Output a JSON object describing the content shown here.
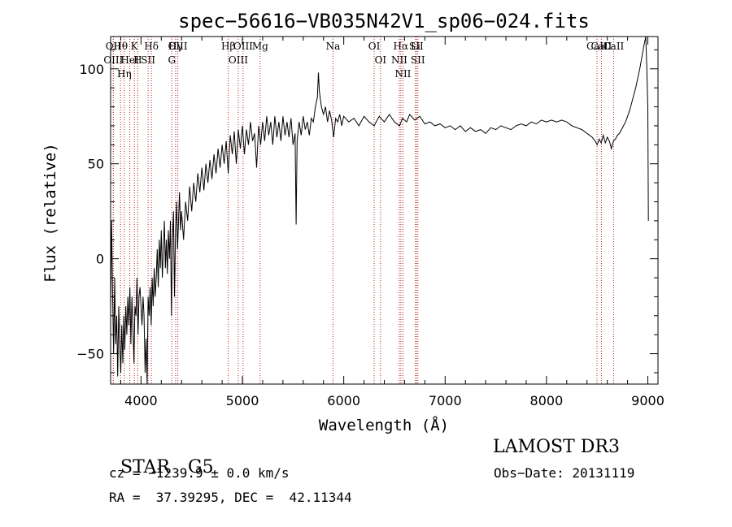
{
  "chart_data": {
    "type": "line",
    "title": "spec−56616−VB035N42V1_sp06−024.fits",
    "xlabel": "Wavelength (Å)",
    "ylabel": "Flux (relative)",
    "xlim": [
      3700,
      9100
    ],
    "ylim": [
      -66,
      117
    ],
    "xticks": [
      4000,
      5000,
      6000,
      7000,
      8000,
      9000
    ],
    "yticks": [
      -50,
      0,
      50,
      100
    ],
    "series": [
      {
        "points": [
          [
            3700,
            -30
          ],
          [
            3710,
            20
          ],
          [
            3720,
            -20
          ],
          [
            3730,
            -50
          ],
          [
            3740,
            -10
          ],
          [
            3750,
            -45
          ],
          [
            3760,
            -30
          ],
          [
            3770,
            -62
          ],
          [
            3780,
            -25
          ],
          [
            3790,
            -45
          ],
          [
            3800,
            -60
          ],
          [
            3810,
            -35
          ],
          [
            3820,
            -55
          ],
          [
            3830,
            -30
          ],
          [
            3840,
            -48
          ],
          [
            3850,
            -25
          ],
          [
            3860,
            -40
          ],
          [
            3870,
            -20
          ],
          [
            3880,
            -35
          ],
          [
            3890,
            -15
          ],
          [
            3900,
            -45
          ],
          [
            3910,
            -20
          ],
          [
            3920,
            -35
          ],
          [
            3930,
            -55
          ],
          [
            3940,
            -25
          ],
          [
            3950,
            -30
          ],
          [
            3960,
            -10
          ],
          [
            3970,
            -40
          ],
          [
            3980,
            -20
          ],
          [
            3990,
            -15
          ],
          [
            4000,
            -25
          ],
          [
            4010,
            -35
          ],
          [
            4020,
            -20
          ],
          [
            4030,
            -30
          ],
          [
            4040,
            -60
          ],
          [
            4050,
            -42
          ],
          [
            4060,
            -66
          ],
          [
            4070,
            -20
          ],
          [
            4080,
            -30
          ],
          [
            4090,
            -15
          ],
          [
            4100,
            -35
          ],
          [
            4110,
            -10
          ],
          [
            4120,
            -25
          ],
          [
            4130,
            -5
          ],
          [
            4140,
            -20
          ],
          [
            4150,
            -10
          ],
          [
            4160,
            5
          ],
          [
            4170,
            -15
          ],
          [
            4180,
            10
          ],
          [
            4190,
            -5
          ],
          [
            4200,
            15
          ],
          [
            4210,
            -10
          ],
          [
            4220,
            5
          ],
          [
            4230,
            20
          ],
          [
            4240,
            -5
          ],
          [
            4250,
            10
          ],
          [
            4260,
            -8
          ],
          [
            4270,
            15
          ],
          [
            4280,
            0
          ],
          [
            4290,
            20
          ],
          [
            4300,
            -30
          ],
          [
            4310,
            10
          ],
          [
            4320,
            25
          ],
          [
            4330,
            -20
          ],
          [
            4340,
            15
          ],
          [
            4350,
            30
          ],
          [
            4360,
            5
          ],
          [
            4370,
            20
          ],
          [
            4380,
            35
          ],
          [
            4390,
            15
          ],
          [
            4400,
            25
          ],
          [
            4420,
            10
          ],
          [
            4440,
            30
          ],
          [
            4460,
            20
          ],
          [
            4480,
            38
          ],
          [
            4500,
            25
          ],
          [
            4520,
            40
          ],
          [
            4540,
            30
          ],
          [
            4560,
            45
          ],
          [
            4580,
            35
          ],
          [
            4600,
            48
          ],
          [
            4620,
            36
          ],
          [
            4640,
            50
          ],
          [
            4660,
            40
          ],
          [
            4680,
            52
          ],
          [
            4700,
            42
          ],
          [
            4720,
            55
          ],
          [
            4740,
            45
          ],
          [
            4760,
            58
          ],
          [
            4780,
            48
          ],
          [
            4800,
            60
          ],
          [
            4820,
            50
          ],
          [
            4840,
            62
          ],
          [
            4860,
            45
          ],
          [
            4880,
            65
          ],
          [
            4900,
            55
          ],
          [
            4920,
            67
          ],
          [
            4940,
            50
          ],
          [
            4960,
            68
          ],
          [
            4980,
            58
          ],
          [
            5000,
            70
          ],
          [
            5020,
            55
          ],
          [
            5040,
            68
          ],
          [
            5060,
            60
          ],
          [
            5080,
            72
          ],
          [
            5100,
            62
          ],
          [
            5120,
            66
          ],
          [
            5140,
            48
          ],
          [
            5160,
            70
          ],
          [
            5180,
            60
          ],
          [
            5200,
            72
          ],
          [
            5220,
            62
          ],
          [
            5240,
            75
          ],
          [
            5260,
            65
          ],
          [
            5280,
            72
          ],
          [
            5300,
            60
          ],
          [
            5320,
            75
          ],
          [
            5340,
            64
          ],
          [
            5360,
            72
          ],
          [
            5380,
            62
          ],
          [
            5400,
            75
          ],
          [
            5420,
            65
          ],
          [
            5440,
            72
          ],
          [
            5460,
            64
          ],
          [
            5480,
            74
          ],
          [
            5500,
            60
          ],
          [
            5520,
            66
          ],
          [
            5530,
            18
          ],
          [
            5540,
            62
          ],
          [
            5560,
            72
          ],
          [
            5580,
            65
          ],
          [
            5600,
            75
          ],
          [
            5620,
            68
          ],
          [
            5640,
            72
          ],
          [
            5660,
            65
          ],
          [
            5680,
            74
          ],
          [
            5700,
            72
          ],
          [
            5720,
            80
          ],
          [
            5740,
            85
          ],
          [
            5750,
            98
          ],
          [
            5760,
            88
          ],
          [
            5780,
            80
          ],
          [
            5800,
            76
          ],
          [
            5820,
            80
          ],
          [
            5840,
            72
          ],
          [
            5860,
            78
          ],
          [
            5880,
            73
          ],
          [
            5900,
            64
          ],
          [
            5920,
            74
          ],
          [
            5940,
            72
          ],
          [
            5960,
            76
          ],
          [
            5980,
            70
          ],
          [
            6000,
            75
          ],
          [
            6050,
            72
          ],
          [
            6100,
            74
          ],
          [
            6150,
            70
          ],
          [
            6200,
            75
          ],
          [
            6250,
            72
          ],
          [
            6300,
            70
          ],
          [
            6350,
            75
          ],
          [
            6400,
            72
          ],
          [
            6450,
            76
          ],
          [
            6500,
            72
          ],
          [
            6550,
            70
          ],
          [
            6580,
            74
          ],
          [
            6620,
            72
          ],
          [
            6650,
            76
          ],
          [
            6700,
            73
          ],
          [
            6750,
            75
          ],
          [
            6800,
            71
          ],
          [
            6850,
            72
          ],
          [
            6900,
            70
          ],
          [
            6950,
            71
          ],
          [
            7000,
            69
          ],
          [
            7050,
            70
          ],
          [
            7100,
            68
          ],
          [
            7150,
            70
          ],
          [
            7200,
            67
          ],
          [
            7250,
            69
          ],
          [
            7300,
            67
          ],
          [
            7350,
            68
          ],
          [
            7400,
            66
          ],
          [
            7450,
            69
          ],
          [
            7500,
            68
          ],
          [
            7550,
            70
          ],
          [
            7600,
            69
          ],
          [
            7650,
            68
          ],
          [
            7700,
            70
          ],
          [
            7750,
            71
          ],
          [
            7800,
            70
          ],
          [
            7850,
            72
          ],
          [
            7900,
            71
          ],
          [
            7950,
            73
          ],
          [
            8000,
            72
          ],
          [
            8050,
            73
          ],
          [
            8100,
            72
          ],
          [
            8150,
            73
          ],
          [
            8200,
            72
          ],
          [
            8250,
            70
          ],
          [
            8300,
            69
          ],
          [
            8350,
            68
          ],
          [
            8400,
            66
          ],
          [
            8450,
            64
          ],
          [
            8480,
            62
          ],
          [
            8500,
            60
          ],
          [
            8520,
            63
          ],
          [
            8540,
            61
          ],
          [
            8560,
            65
          ],
          [
            8580,
            61
          ],
          [
            8600,
            64
          ],
          [
            8620,
            62
          ],
          [
            8640,
            58
          ],
          [
            8660,
            62
          ],
          [
            8680,
            63
          ],
          [
            8700,
            65
          ],
          [
            8720,
            66
          ],
          [
            8740,
            68
          ],
          [
            8760,
            70
          ],
          [
            8780,
            72
          ],
          [
            8800,
            75
          ],
          [
            8820,
            78
          ],
          [
            8840,
            82
          ],
          [
            8860,
            86
          ],
          [
            8880,
            90
          ],
          [
            8900,
            95
          ],
          [
            8920,
            100
          ],
          [
            8940,
            106
          ],
          [
            8960,
            112
          ],
          [
            8980,
            117
          ],
          [
            8990,
            100
          ],
          [
            9000,
            80
          ],
          [
            9005,
            20
          ]
        ]
      }
    ],
    "lines": [
      {
        "label": "Hθ",
        "wave": 3798
      },
      {
        "label": "OII",
        "wave": 3727
      },
      {
        "label": "OIII",
        "wave": 3727
      },
      {
        "label": "K",
        "wave": 3934
      },
      {
        "label": "HeI",
        "wave": 3889
      },
      {
        "label": "Hη",
        "wave": 3835
      },
      {
        "label": "Hδ",
        "wave": 4102
      },
      {
        "label": "SII",
        "wave": 4070
      },
      {
        "label": "H",
        "wave": 3968
      },
      {
        "label": "OIII",
        "wave": 4363
      },
      {
        "label": "Hγ",
        "wave": 4341
      },
      {
        "label": "G",
        "wave": 4304
      },
      {
        "label": "OIII",
        "wave": 5007
      },
      {
        "label": "OIII",
        "wave": 4959
      },
      {
        "label": "Hβ",
        "wave": 4861
      },
      {
        "label": "Mg",
        "wave": 5175
      },
      {
        "label": "Na",
        "wave": 5894
      },
      {
        "label": "OI",
        "wave": 6300
      },
      {
        "label": "OI",
        "wave": 6363
      },
      {
        "label": "Hα",
        "wave": 6563
      },
      {
        "label": "SII",
        "wave": 6716
      },
      {
        "label": "NII",
        "wave": 6548
      },
      {
        "label": "Li",
        "wave": 6708
      },
      {
        "label": "NII",
        "wave": 6584
      },
      {
        "label": "SII",
        "wave": 6731
      },
      {
        "label": "CaII",
        "wave": 8498
      },
      {
        "label": "CaII",
        "wave": 8542
      },
      {
        "label": "CaII",
        "wave": 8662
      }
    ]
  },
  "info": {
    "class": "STAR",
    "subclass": "G5",
    "survey": "LAMOST DR3",
    "cz": "cz = −1239.9 ± 0.0 km/s",
    "obsdate": "Obs−Date: 20131119",
    "coords": "RA =  37.39295, DEC =  42.11344"
  }
}
